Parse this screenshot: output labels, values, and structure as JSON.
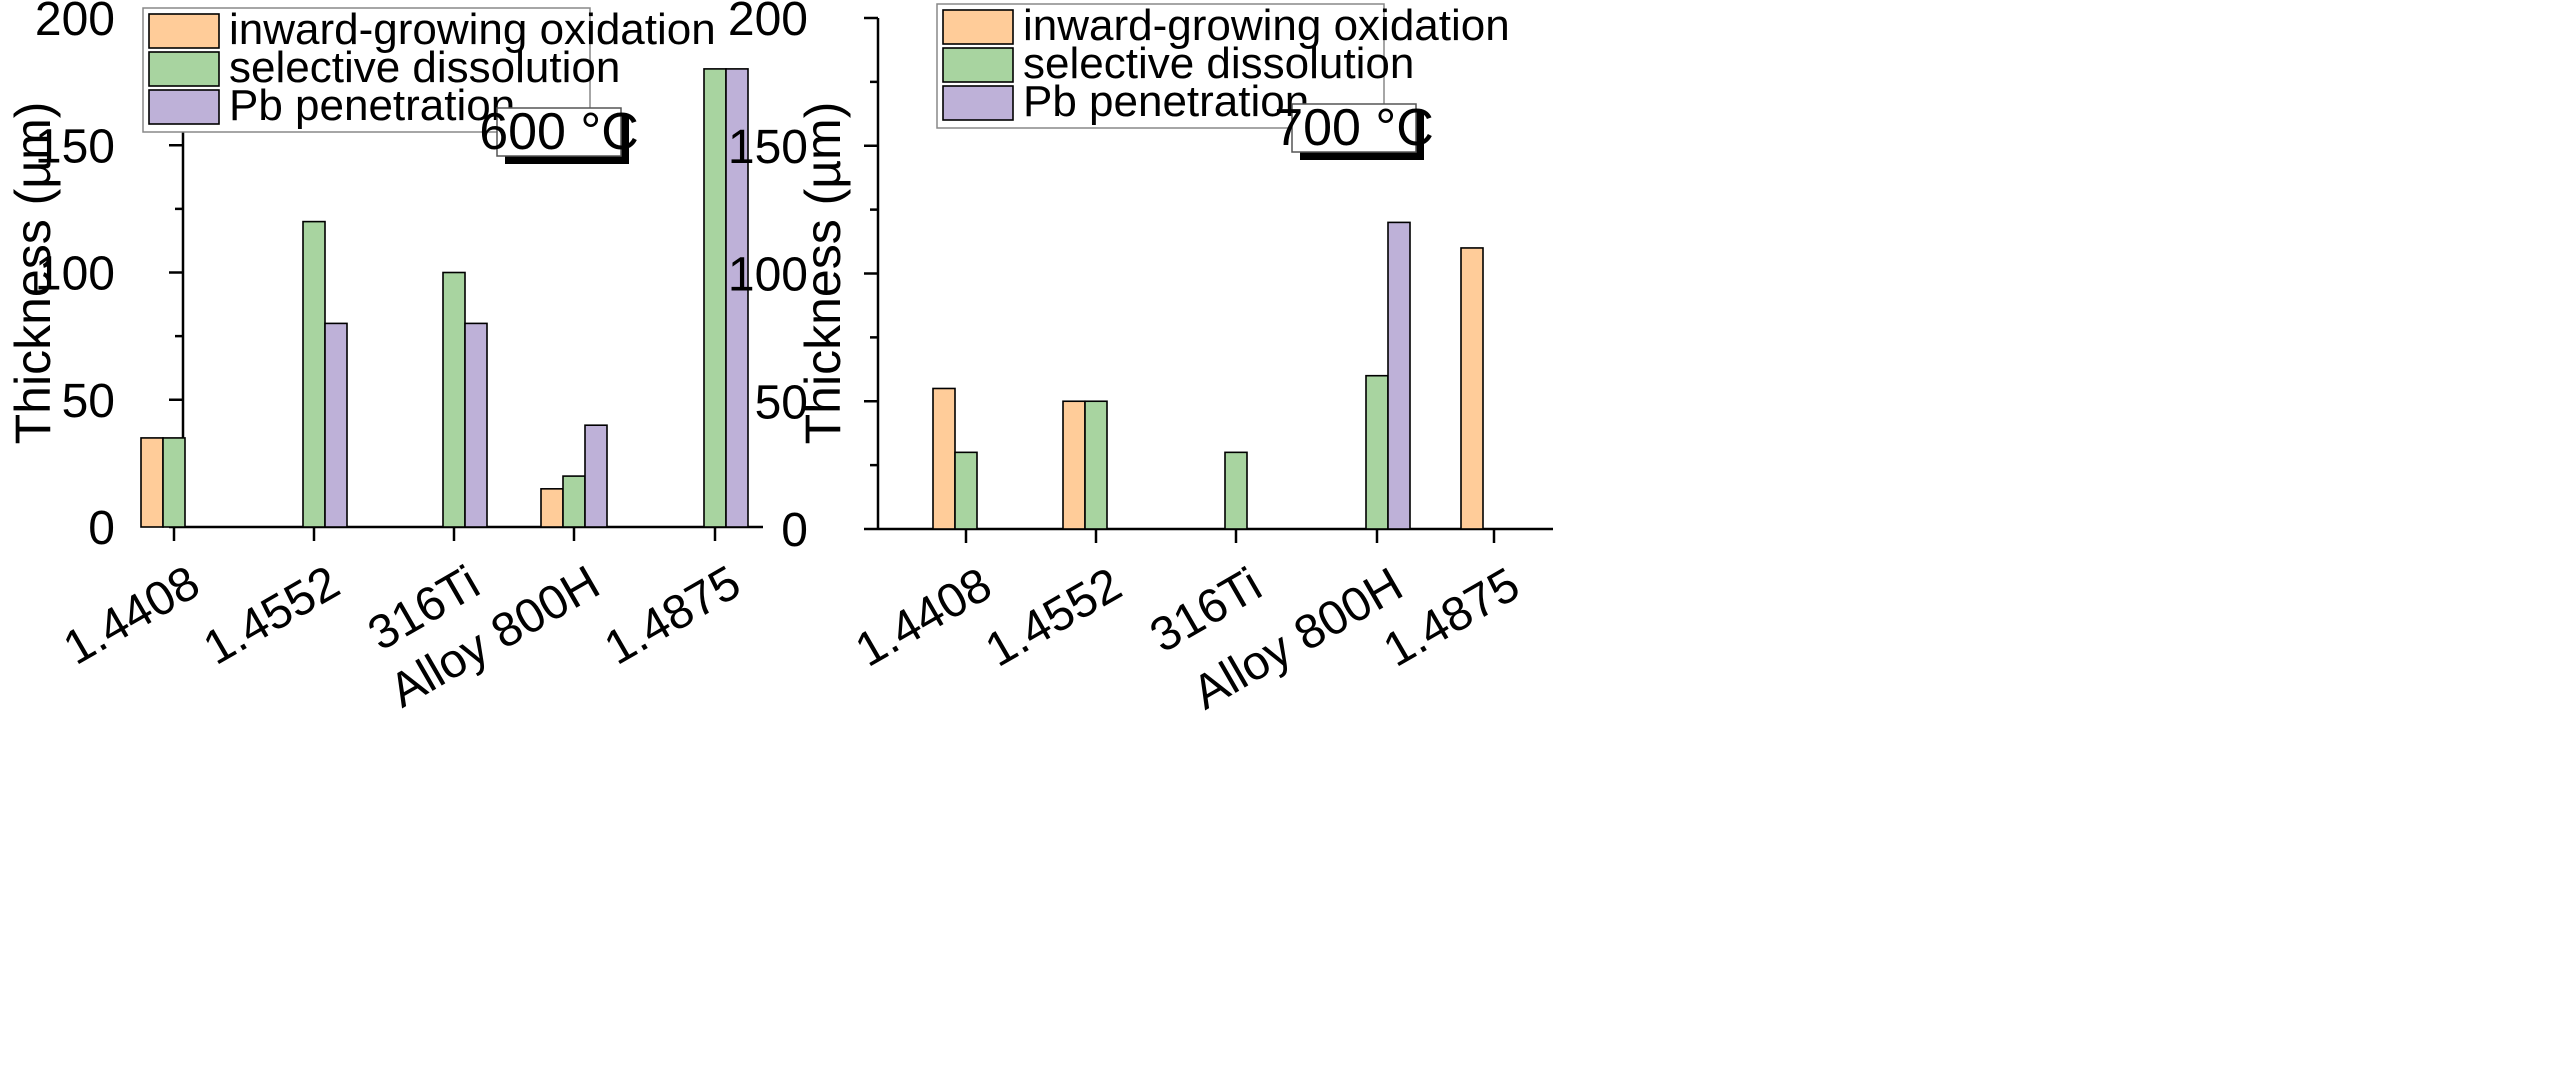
{
  "chart_data": [
    {
      "type": "bar",
      "ylabel": "Thickness (µm)",
      "xlabel": "",
      "ylim": [
        0,
        200
      ],
      "yticks": [
        0,
        50,
        100,
        150,
        200
      ],
      "categories": [
        "1.4408",
        "1.4552",
        "316Ti",
        "Alloy 800H",
        "1.4875"
      ],
      "annotation": "600 °C",
      "legend_position": "top-left",
      "series": [
        {
          "name": "inward-growing oxidation",
          "color": "#FFCC99",
          "values": [
            35,
            0,
            0,
            15,
            0
          ]
        },
        {
          "name": "selective dissolution",
          "color": "#A8D4A0",
          "values": [
            35,
            120,
            100,
            20,
            180
          ]
        },
        {
          "name": "Pb penetration",
          "color": "#BEB1D8",
          "values": [
            0,
            80,
            80,
            40,
            180
          ]
        }
      ]
    },
    {
      "type": "bar",
      "ylabel": "Thickness (µm)",
      "xlabel": "",
      "ylim": [
        0,
        200
      ],
      "yticks": [
        0,
        50,
        100,
        150,
        200
      ],
      "categories": [
        "1.4408",
        "1.4552",
        "316Ti",
        "Alloy 800H",
        "1.4875"
      ],
      "annotation": "700 °C",
      "legend_position": "top-left",
      "series": [
        {
          "name": "inward-growing oxidation",
          "color": "#FFCC99",
          "values": [
            55,
            50,
            0,
            0,
            110
          ]
        },
        {
          "name": "selective dissolution",
          "color": "#A8D4A0",
          "values": [
            30,
            50,
            30,
            60,
            0
          ]
        },
        {
          "name": "Pb penetration",
          "color": "#BEB1D8",
          "values": [
            0,
            0,
            0,
            120,
            0
          ]
        }
      ]
    }
  ]
}
